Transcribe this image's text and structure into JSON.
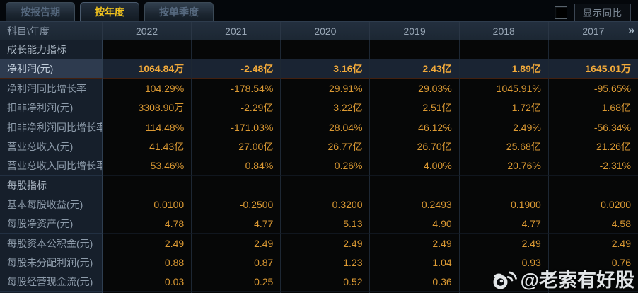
{
  "tabs": [
    {
      "id": "by-report-period",
      "label": "按报告期",
      "active": false
    },
    {
      "id": "by-year",
      "label": "按年度",
      "active": true
    },
    {
      "id": "by-quarter",
      "label": "按单季度",
      "active": false
    }
  ],
  "controls": {
    "show_yoy_label": "显示同比",
    "checkbox_checked": false
  },
  "table": {
    "corner_label": "科目\\年度",
    "years": [
      "2022",
      "2021",
      "2020",
      "2019",
      "2018",
      "2017"
    ],
    "more_icon": "»",
    "rows": [
      {
        "type": "section",
        "label": "成长能力指标",
        "values": [
          "",
          "",
          "",
          "",
          "",
          ""
        ]
      },
      {
        "type": "data",
        "highlight": true,
        "label": "净利润(元)",
        "values": [
          "1064.84万",
          "-2.48亿",
          "3.16亿",
          "2.43亿",
          "1.89亿",
          "1645.01万"
        ]
      },
      {
        "type": "data",
        "label": "净利润同比增长率",
        "values": [
          "104.29%",
          "-178.54%",
          "29.91%",
          "29.03%",
          "1045.91%",
          "-95.65%"
        ]
      },
      {
        "type": "data",
        "label": "扣非净利润(元)",
        "values": [
          "3308.90万",
          "-2.29亿",
          "3.22亿",
          "2.51亿",
          "1.72亿",
          "1.68亿"
        ]
      },
      {
        "type": "data",
        "label": "扣非净利润同比增长率",
        "values": [
          "114.48%",
          "-171.03%",
          "28.04%",
          "46.12%",
          "2.49%",
          "-56.34%"
        ]
      },
      {
        "type": "data",
        "label": "营业总收入(元)",
        "values": [
          "41.43亿",
          "27.00亿",
          "26.77亿",
          "26.70亿",
          "25.68亿",
          "21.26亿"
        ]
      },
      {
        "type": "data",
        "label": "营业总收入同比增长率",
        "values": [
          "53.46%",
          "0.84%",
          "0.26%",
          "4.00%",
          "20.76%",
          "-2.31%"
        ]
      },
      {
        "type": "section",
        "label": "每股指标",
        "values": [
          "",
          "",
          "",
          "",
          "",
          ""
        ]
      },
      {
        "type": "data",
        "label": "基本每股收益(元)",
        "values": [
          "0.0100",
          "-0.2500",
          "0.3200",
          "0.2493",
          "0.1900",
          "0.0200"
        ]
      },
      {
        "type": "data",
        "label": "每股净资产(元)",
        "values": [
          "4.78",
          "4.77",
          "5.13",
          "4.90",
          "4.77",
          "4.58"
        ]
      },
      {
        "type": "data",
        "label": "每股资本公积金(元)",
        "values": [
          "2.49",
          "2.49",
          "2.49",
          "2.49",
          "2.49",
          "2.49"
        ]
      },
      {
        "type": "data",
        "label": "每股未分配利润(元)",
        "values": [
          "0.88",
          "0.87",
          "1.23",
          "1.04",
          "0.93",
          "0.76"
        ]
      },
      {
        "type": "data",
        "label": "每股经营现金流(元)",
        "values": [
          "0.03",
          "0.25",
          "0.52",
          "0.36",
          "",
          ""
        ]
      }
    ]
  },
  "watermark": {
    "icon": "weibo-logo",
    "text": "@老索有好股"
  },
  "colors": {
    "accent_gold": "#f2c31e",
    "value_orange": "#dc9a33",
    "highlight_row_bg": "#1a2433",
    "header_bg": "#202b39",
    "label_col_bg": "#161f2b",
    "page_bg": "#04070b"
  }
}
